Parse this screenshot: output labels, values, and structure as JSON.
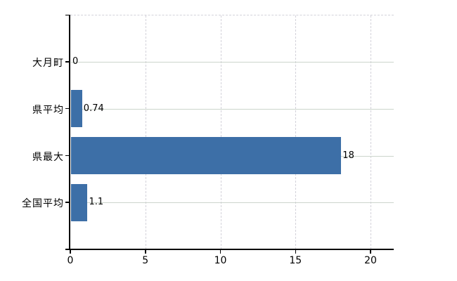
{
  "chart_data": {
    "type": "bar",
    "orientation": "horizontal",
    "categories": [
      "大月町",
      "県平均",
      "県最大",
      "全国平均"
    ],
    "values": [
      0,
      0.74,
      18,
      1.1
    ],
    "value_labels": [
      "0",
      "0.74",
      "18",
      "1.1"
    ],
    "x_tick_values": [
      0,
      5,
      10,
      15,
      20
    ],
    "x_tick_labels": [
      "0",
      "5",
      "10",
      "15",
      "20"
    ],
    "xlim": [
      0,
      21.5
    ],
    "title": "",
    "xlabel": "",
    "ylabel": "",
    "grid": true,
    "legend": false,
    "bar_color": "#3d6fa7"
  },
  "colors": {
    "bar": "#3d6fa7",
    "axis": "#000000",
    "grid_horizontal": "#ccd5cc",
    "grid_vertical": "#d3d2da",
    "background": "#ffffff",
    "text": "#000000"
  }
}
